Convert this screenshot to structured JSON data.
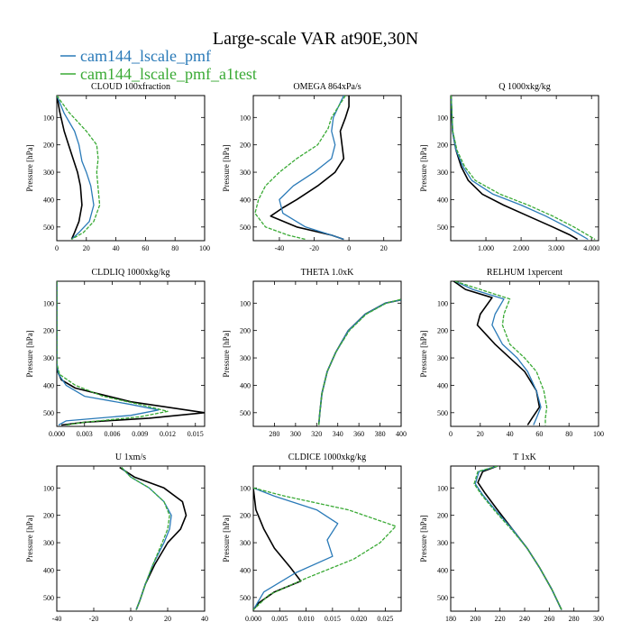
{
  "title": "Large-scale VAR at90E,30N",
  "legend": [
    {
      "label": "cam144_lscale_pmf",
      "color": "#2a7ab8"
    },
    {
      "label": "cam144_lscale_pmf_a1test",
      "color": "#3aaa35"
    }
  ],
  "third_series_color": "#000000",
  "chart_data": [
    {
      "type": "line",
      "title": "CLOUD  100xfraction",
      "ylabel": "Pressure [hPa]",
      "xlim": [
        0,
        100
      ],
      "ylim": [
        550,
        20
      ],
      "xticks": [
        0,
        20,
        40,
        60,
        80,
        100
      ],
      "xtick_labels": [
        "0",
        "20",
        "40",
        "60",
        "80",
        "100"
      ],
      "yticks": [
        100,
        200,
        300,
        400,
        500
      ],
      "ytick_labels": [
        "100",
        "200",
        "300",
        "400",
        "500"
      ],
      "series": [
        {
          "color": "#000000",
          "x": [
            0,
            2,
            5,
            8,
            11,
            14,
            16,
            17,
            15,
            12,
            10
          ],
          "y": [
            20,
            80,
            150,
            200,
            250,
            300,
            350,
            420,
            480,
            520,
            545
          ]
        },
        {
          "color": "#2a7ab8",
          "x": [
            0,
            5,
            12,
            15,
            17,
            20,
            23,
            25,
            22,
            15,
            10
          ],
          "y": [
            20,
            85,
            150,
            200,
            260,
            300,
            350,
            420,
            480,
            520,
            545
          ]
        },
        {
          "color": "#3aaa35",
          "x": [
            0,
            8,
            20,
            27,
            28,
            27,
            28,
            29,
            25,
            18,
            10
          ],
          "y": [
            20,
            80,
            150,
            200,
            250,
            300,
            360,
            420,
            480,
            520,
            545
          ]
        }
      ]
    },
    {
      "type": "line",
      "title": "OMEGA  864xPa/s",
      "ylabel": "Pressure [hPa]",
      "xlim": [
        -55,
        30
      ],
      "ylim": [
        550,
        20
      ],
      "xticks": [
        -40,
        -20,
        0,
        20
      ],
      "xtick_labels": [
        "-40",
        "-20",
        "0",
        "20"
      ],
      "yticks": [
        100,
        200,
        300,
        400,
        500
      ],
      "ytick_labels": [
        "100",
        "200",
        "300",
        "400",
        "500"
      ],
      "series": [
        {
          "color": "#000000",
          "x": [
            0,
            0,
            -2,
            -5,
            -3,
            -8,
            -18,
            -30,
            -38,
            -45,
            -30,
            -10,
            -3
          ],
          "y": [
            20,
            60,
            100,
            150,
            250,
            300,
            350,
            400,
            430,
            460,
            500,
            530,
            545
          ]
        },
        {
          "color": "#2a7ab8",
          "x": [
            -3,
            -6,
            -9,
            -10,
            -8,
            -10,
            -20,
            -32,
            -40,
            -38,
            -25,
            -10,
            -3
          ],
          "y": [
            20,
            60,
            100,
            150,
            200,
            250,
            300,
            350,
            400,
            450,
            500,
            530,
            545
          ]
        },
        {
          "color": "#3aaa35",
          "x": [
            -2,
            -6,
            -10,
            -12,
            -18,
            -30,
            -40,
            -48,
            -52,
            -54,
            -48,
            -35,
            -25
          ],
          "y": [
            20,
            60,
            100,
            140,
            200,
            250,
            300,
            350,
            400,
            450,
            500,
            530,
            545
          ]
        }
      ]
    },
    {
      "type": "line",
      "title": "Q  1000xkg/kg",
      "ylabel": "Pressure [hPa]",
      "xlim": [
        0,
        4.2
      ],
      "ylim": [
        550,
        20
      ],
      "xticks": [
        1,
        2,
        3,
        4
      ],
      "xtick_labels": [
        "1.000",
        "2.000",
        "3.000",
        "4.000"
      ],
      "yticks": [
        100,
        200,
        300,
        400,
        500
      ],
      "ytick_labels": [
        "100",
        "200",
        "300",
        "400",
        "500"
      ],
      "series": [
        {
          "color": "#000000",
          "x": [
            0.01,
            0.05,
            0.15,
            0.3,
            0.5,
            0.9,
            1.5,
            2.2,
            2.9,
            3.4,
            3.6
          ],
          "y": [
            20,
            150,
            220,
            280,
            330,
            380,
            420,
            460,
            500,
            530,
            545
          ]
        },
        {
          "color": "#2a7ab8",
          "x": [
            0.01,
            0.05,
            0.15,
            0.35,
            0.6,
            1.2,
            2.0,
            2.7,
            3.3,
            3.7,
            3.9
          ],
          "y": [
            20,
            150,
            220,
            280,
            330,
            380,
            420,
            460,
            500,
            530,
            545
          ]
        },
        {
          "color": "#3aaa35",
          "x": [
            0.01,
            0.06,
            0.18,
            0.4,
            0.7,
            1.4,
            2.2,
            2.9,
            3.5,
            3.9,
            4.1
          ],
          "y": [
            20,
            150,
            220,
            280,
            330,
            380,
            420,
            460,
            500,
            530,
            545
          ]
        }
      ]
    },
    {
      "type": "line",
      "title": "CLDLIQ  1000xkg/kg",
      "ylabel": "Pressure [hPa]",
      "xlim": [
        0,
        0.016
      ],
      "ylim": [
        550,
        20
      ],
      "xticks": [
        0,
        0.003,
        0.006,
        0.009,
        0.012,
        0.015
      ],
      "xtick_labels": [
        "0.000",
        "0.003",
        "0.006",
        "0.009",
        "0.012",
        "0.015"
      ],
      "yticks": [
        100,
        200,
        300,
        400,
        500
      ],
      "ytick_labels": [
        "100",
        "200",
        "300",
        "400",
        "500"
      ],
      "series": [
        {
          "color": "#000000",
          "x": [
            0,
            0,
            0.0001,
            0.0005,
            0.002,
            0.008,
            0.016,
            0.01,
            0.003,
            0.0005
          ],
          "y": [
            20,
            320,
            350,
            380,
            410,
            460,
            500,
            520,
            535,
            545
          ]
        },
        {
          "color": "#2a7ab8",
          "x": [
            0,
            0,
            0.0002,
            0.001,
            0.003,
            0.008,
            0.011,
            0.008,
            0.001,
            0.0002
          ],
          "y": [
            20,
            320,
            360,
            400,
            440,
            470,
            490,
            510,
            530,
            545
          ]
        },
        {
          "color": "#3aaa35",
          "x": [
            0,
            0,
            0.0003,
            0.002,
            0.005,
            0.009,
            0.012,
            0.009,
            0.003,
            0.001
          ],
          "y": [
            20,
            320,
            360,
            400,
            440,
            470,
            495,
            515,
            535,
            545
          ]
        }
      ]
    },
    {
      "type": "line",
      "title": "THETA  1.0xK",
      "ylabel": "Pressure [hPa]",
      "xlim": [
        260,
        400
      ],
      "ylim": [
        550,
        20
      ],
      "xticks": [
        280,
        300,
        320,
        340,
        360,
        380,
        400
      ],
      "xtick_labels": [
        "280",
        "300",
        "320",
        "340",
        "360",
        "380",
        "400"
      ],
      "yticks": [
        100,
        200,
        300,
        400,
        500
      ],
      "ytick_labels": [
        "100",
        "200",
        "300",
        "400",
        "500"
      ],
      "series": [
        {
          "color": "#000000",
          "x": [
            322,
            323,
            325,
            330,
            338,
            350,
            366,
            385,
            400
          ],
          "y": [
            545,
            500,
            430,
            350,
            280,
            200,
            140,
            100,
            88
          ]
        },
        {
          "color": "#2a7ab8",
          "x": [
            322,
            323,
            325,
            330,
            338,
            350,
            366,
            385,
            400
          ],
          "y": [
            545,
            500,
            430,
            350,
            280,
            200,
            140,
            100,
            88
          ]
        },
        {
          "color": "#3aaa35",
          "x": [
            322,
            323,
            325,
            330,
            338,
            351,
            367,
            386,
            400
          ],
          "y": [
            545,
            500,
            430,
            350,
            280,
            200,
            140,
            100,
            86
          ]
        }
      ]
    },
    {
      "type": "line",
      "title": "RELHUM  1xpercent",
      "ylabel": "Pressure [hPa]",
      "xlim": [
        0,
        100
      ],
      "ylim": [
        550,
        20
      ],
      "xticks": [
        0,
        20,
        40,
        60,
        80,
        100
      ],
      "xtick_labels": [
        "0",
        "20",
        "40",
        "60",
        "80",
        "100"
      ],
      "yticks": [
        100,
        200,
        300,
        400,
        500
      ],
      "ytick_labels": [
        "100",
        "200",
        "300",
        "400",
        "500"
      ],
      "series": [
        {
          "color": "#000000",
          "x": [
            2,
            10,
            28,
            20,
            18,
            30,
            40,
            50,
            58,
            60,
            55,
            52
          ],
          "y": [
            20,
            50,
            80,
            140,
            180,
            250,
            300,
            350,
            420,
            480,
            520,
            545
          ]
        },
        {
          "color": "#2a7ab8",
          "x": [
            3,
            15,
            36,
            30,
            28,
            35,
            45,
            52,
            58,
            61,
            58,
            56
          ],
          "y": [
            20,
            50,
            85,
            140,
            180,
            250,
            300,
            350,
            420,
            480,
            520,
            545
          ]
        },
        {
          "color": "#3aaa35",
          "x": [
            3,
            20,
            40,
            36,
            35,
            40,
            50,
            58,
            63,
            65,
            64,
            64
          ],
          "y": [
            20,
            50,
            85,
            140,
            180,
            250,
            300,
            350,
            420,
            480,
            520,
            545
          ]
        }
      ]
    },
    {
      "type": "line",
      "title": "U  1xm/s",
      "ylabel": "Pressure [hPa]",
      "xlim": [
        -40,
        40
      ],
      "ylim": [
        550,
        20
      ],
      "xticks": [
        -40,
        -20,
        0,
        20,
        40
      ],
      "xtick_labels": [
        "-40",
        "-20",
        "0",
        "20",
        "40"
      ],
      "yticks": [
        100,
        200,
        300,
        400,
        500
      ],
      "ytick_labels": [
        "100",
        "200",
        "300",
        "400",
        "500"
      ],
      "series": [
        {
          "color": "#000000",
          "x": [
            -6,
            2,
            18,
            28,
            30,
            27,
            20,
            13,
            8,
            5,
            3
          ],
          "y": [
            25,
            60,
            100,
            150,
            200,
            250,
            300,
            380,
            450,
            510,
            545
          ]
        },
        {
          "color": "#2a7ab8",
          "x": [
            -5,
            0,
            10,
            18,
            22,
            21,
            18,
            12,
            8,
            5,
            3
          ],
          "y": [
            25,
            60,
            100,
            150,
            200,
            250,
            300,
            380,
            450,
            510,
            545
          ]
        },
        {
          "color": "#3aaa35",
          "x": [
            -5,
            0,
            10,
            18,
            21,
            20,
            17,
            12,
            8,
            5,
            3
          ],
          "y": [
            25,
            60,
            100,
            150,
            200,
            250,
            300,
            380,
            450,
            510,
            545
          ]
        }
      ]
    },
    {
      "type": "line",
      "title": "CLDICE  1000xkg/kg",
      "ylabel": "Pressure [hPa]",
      "xlim": [
        0,
        0.028
      ],
      "ylim": [
        550,
        20
      ],
      "xticks": [
        0,
        0.005,
        0.01,
        0.015,
        0.02,
        0.025
      ],
      "xtick_labels": [
        "0.000",
        "0.005",
        "0.010",
        "0.015",
        "0.020",
        "0.025"
      ],
      "yticks": [
        100,
        200,
        300,
        400,
        500
      ],
      "ytick_labels": [
        "100",
        "200",
        "300",
        "400",
        "500"
      ],
      "series": [
        {
          "color": "#000000",
          "x": [
            0,
            0.0005,
            0.002,
            0.004,
            0.007,
            0.009,
            0.004,
            0.001,
            0
          ],
          "y": [
            100,
            180,
            250,
            320,
            390,
            440,
            480,
            520,
            545
          ]
        },
        {
          "color": "#2a7ab8",
          "x": [
            0,
            0.004,
            0.012,
            0.016,
            0.014,
            0.015,
            0.008,
            0.002,
            0
          ],
          "y": [
            100,
            130,
            180,
            230,
            290,
            350,
            410,
            480,
            545
          ]
        },
        {
          "color": "#3aaa35",
          "x": [
            0,
            0.006,
            0.018,
            0.027,
            0.024,
            0.019,
            0.01,
            0.003,
            0
          ],
          "y": [
            100,
            130,
            180,
            240,
            300,
            360,
            430,
            490,
            545
          ]
        }
      ]
    },
    {
      "type": "line",
      "title": "T  1xK",
      "ylabel": "Pressure [hPa]",
      "xlim": [
        180,
        300
      ],
      "ylim": [
        550,
        20
      ],
      "xticks": [
        180,
        200,
        220,
        240,
        260,
        280,
        300
      ],
      "xtick_labels": [
        "180",
        "200",
        "220",
        "240",
        "260",
        "280",
        "300"
      ],
      "yticks": [
        100,
        200,
        300,
        400,
        500
      ],
      "ytick_labels": [
        "100",
        "200",
        "300",
        "400",
        "500"
      ],
      "series": [
        {
          "color": "#000000",
          "x": [
            218,
            206,
            202,
            208,
            218,
            230,
            242,
            252,
            262,
            270
          ],
          "y": [
            20,
            40,
            80,
            120,
            180,
            250,
            320,
            390,
            470,
            545
          ]
        },
        {
          "color": "#2a7ab8",
          "x": [
            218,
            203,
            200,
            206,
            217,
            230,
            242,
            252,
            262,
            270
          ],
          "y": [
            20,
            40,
            85,
            125,
            185,
            250,
            320,
            390,
            470,
            545
          ]
        },
        {
          "color": "#3aaa35",
          "x": [
            218,
            202,
            199,
            205,
            216,
            229,
            242,
            252,
            262,
            270
          ],
          "y": [
            20,
            40,
            85,
            125,
            185,
            250,
            320,
            390,
            470,
            545
          ]
        }
      ]
    }
  ]
}
